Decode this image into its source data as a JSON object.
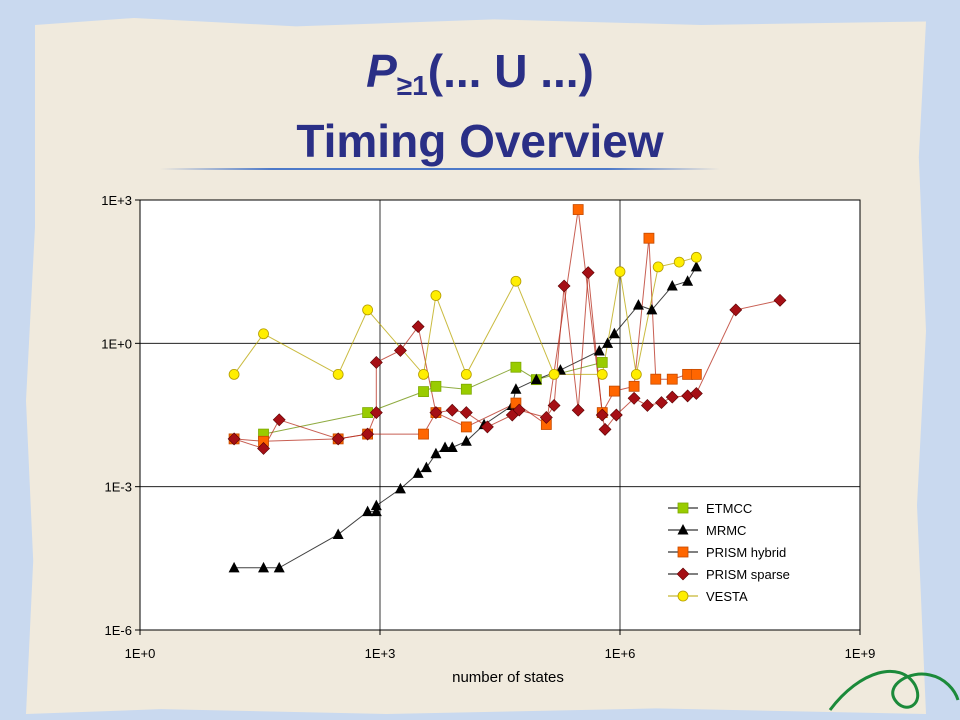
{
  "slide": {
    "title_p": "P",
    "title_sub": "≥1",
    "title_rest": "(... U  ...)",
    "title_line2": "Timing Overview"
  },
  "chart_data": {
    "type": "scatter",
    "xscale": "log10",
    "yscale": "log10",
    "xlim": [
      1,
      1000000000
    ],
    "ylim": [
      1e-06,
      1000
    ],
    "xticks": [
      "1E+0",
      "1E+3",
      "1E+6",
      "1E+9"
    ],
    "yticks": [
      "1E-6",
      "1E-3",
      "1E+0",
      "1E+3"
    ],
    "xlabel": "number of states",
    "ylabel": "",
    "grid": true,
    "legend_position": "bottom-right",
    "series": [
      {
        "name": "ETMCC",
        "color": "#99cc00",
        "marker": "square",
        "points": [
          [
            35,
            0.0126
          ],
          [
            700,
            0.0355
          ],
          [
            3500,
            0.0977
          ],
          [
            5000,
            0.1259
          ],
          [
            12000,
            0.1096
          ],
          [
            50000,
            0.3162
          ],
          [
            90000,
            0.1738
          ],
          [
            600000,
            0.3981
          ]
        ]
      },
      {
        "name": "MRMC",
        "color": "#000000",
        "marker": "triangle",
        "points": [
          [
            15,
            2e-05
          ],
          [
            35,
            2e-05
          ],
          [
            55,
            2e-05
          ],
          [
            300,
            0.0001
          ],
          [
            700,
            0.0003
          ],
          [
            900,
            0.0003
          ],
          [
            900,
            0.0004
          ],
          [
            1800,
            0.0009
          ],
          [
            3000,
            0.0019
          ],
          [
            3800,
            0.0025
          ],
          [
            5000,
            0.0049
          ],
          [
            6500,
            0.0066
          ],
          [
            8000,
            0.0066
          ],
          [
            12000,
            0.0089
          ],
          [
            20000,
            0.0199
          ],
          [
            45000,
            0.0501
          ],
          [
            50000,
            0.1096
          ],
          [
            90000,
            0.1738
          ],
          [
            180000,
            0.2754
          ],
          [
            550000,
            0.6918
          ],
          [
            700000,
            1.0
          ],
          [
            850000,
            1.5849
          ],
          [
            1700000,
            6.3096
          ],
          [
            2500000,
            5.0119
          ],
          [
            4500000,
            15.8489
          ],
          [
            7000000,
            19.9526
          ],
          [
            9000000,
            39.8107
          ]
        ]
      },
      {
        "name": "PRISM hybrid",
        "color": "#ff6600",
        "marker": "square",
        "points": [
          [
            15,
            0.01
          ],
          [
            35,
            0.0089
          ],
          [
            300,
            0.01
          ],
          [
            700,
            0.0126
          ],
          [
            3500,
            0.0126
          ],
          [
            5000,
            0.0355
          ],
          [
            12000,
            0.0178
          ],
          [
            50000,
            0.0562
          ],
          [
            120000,
            0.02
          ],
          [
            600000,
            0.0355
          ],
          [
            850000,
            0.1
          ],
          [
            1500000,
            0.1259
          ],
          [
            2800000,
            0.1778
          ],
          [
            4500000,
            0.1778
          ],
          [
            7000000,
            0.2239
          ],
          [
            9000000,
            0.2239
          ],
          [
            300000,
            630.9573
          ],
          [
            2300000,
            158.4893
          ]
        ]
      },
      {
        "name": "PRISM sparse",
        "color": "#a50f15",
        "marker": "diamond",
        "points": [
          [
            15,
            0.01
          ],
          [
            35,
            0.0063
          ],
          [
            55,
            0.0251
          ],
          [
            300,
            0.01
          ],
          [
            700,
            0.0126
          ],
          [
            900,
            0.0355
          ],
          [
            900,
            0.3981
          ],
          [
            1800,
            0.7079
          ],
          [
            3000,
            2.2387
          ],
          [
            5000,
            0.0355
          ],
          [
            8000,
            0.0398
          ],
          [
            12000,
            0.0355
          ],
          [
            22000,
            0.0178
          ],
          [
            45000,
            0.0316
          ],
          [
            55000,
            0.0401
          ],
          [
            120000,
            0.0281
          ],
          [
            150000,
            0.0501
          ],
          [
            300000,
            0.0398
          ],
          [
            600000,
            0.0316
          ],
          [
            650000,
            0.0158
          ],
          [
            900000,
            0.0316
          ],
          [
            1500000,
            0.0708
          ],
          [
            2200000,
            0.0501
          ],
          [
            3300000,
            0.0575
          ],
          [
            4500000,
            0.0749
          ],
          [
            7000000,
            0.0794
          ],
          [
            9000000,
            0.0891
          ],
          [
            200000,
            15.8489
          ],
          [
            400000,
            30.1995
          ],
          [
            28000000,
            5.0119
          ],
          [
            100000000,
            7.9433
          ]
        ]
      },
      {
        "name": "VESTA",
        "color": "#ffee00",
        "marker": "circle",
        "points": [
          [
            15,
            0.2239
          ],
          [
            35,
            1.5849
          ],
          [
            300,
            0.2239
          ],
          [
            700,
            5.0119
          ],
          [
            3500,
            0.2239
          ],
          [
            5000,
            10.0
          ],
          [
            12000,
            0.2239
          ],
          [
            50000,
            19.9526
          ],
          [
            150000,
            0.2239
          ],
          [
            600000,
            0.2239
          ],
          [
            1000000,
            31.6228
          ],
          [
            1600000,
            0.2239
          ],
          [
            3000000,
            39.8107
          ],
          [
            5500000,
            50.1187
          ],
          [
            9000000,
            63.0957
          ]
        ]
      }
    ]
  },
  "chart_data_note": "",
  "legend": {
    "items": [
      "ETMCC",
      "MRMC",
      "PRISM hybrid",
      "PRISM sparse",
      "VESTA"
    ]
  }
}
